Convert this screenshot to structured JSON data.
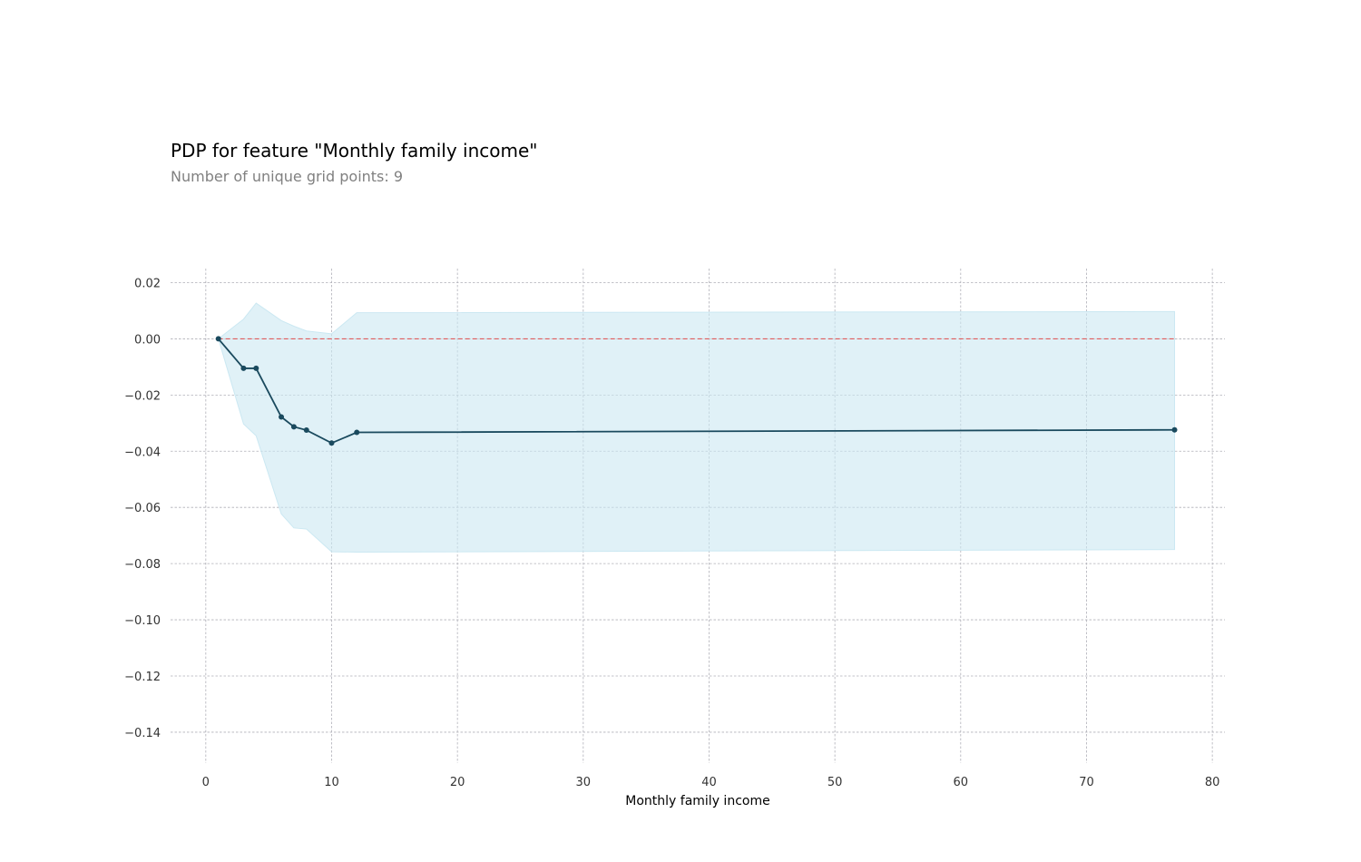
{
  "chart_data": {
    "type": "line",
    "title": "PDP for feature \"Monthly family income\"",
    "subtitle": "Number of unique grid points: 9",
    "xlabel": "Monthly family income",
    "ylabel": "",
    "xlim": [
      -2.8,
      81
    ],
    "ylim": [
      -0.151,
      0.025
    ],
    "xticks": [
      0,
      10,
      20,
      30,
      40,
      50,
      60,
      70,
      80
    ],
    "xtick_labels": [
      "0",
      "10",
      "20",
      "30",
      "40",
      "50",
      "60",
      "70",
      "80"
    ],
    "yticks": [
      0.02,
      0.0,
      -0.02,
      -0.04,
      -0.06,
      -0.08,
      -0.1,
      -0.12,
      -0.14
    ],
    "ytick_labels": [
      "0.02",
      "0.00",
      "−0.02",
      "−0.04",
      "−0.06",
      "−0.08",
      "−0.10",
      "−0.12",
      "−0.14"
    ],
    "grid": true,
    "x": [
      1,
      3,
      4,
      6,
      7,
      8,
      10,
      12,
      77
    ],
    "pdp": [
      0.0,
      -0.0105,
      -0.0105,
      -0.0278,
      -0.0313,
      -0.0325,
      -0.0371,
      -0.0333,
      -0.0324
    ],
    "upper": [
      0.0,
      0.007,
      0.0127,
      0.0065,
      0.0045,
      0.0028,
      0.0018,
      0.0093,
      0.0097
    ],
    "lower": [
      0.0,
      -0.0303,
      -0.0345,
      -0.0623,
      -0.0673,
      -0.0677,
      -0.0758,
      -0.0759,
      -0.075
    ],
    "baseline": 0.0,
    "colors": {
      "line": "#1a4a5e",
      "band": "#cbe8f2",
      "baseline": "#e05c5c",
      "grid": "#b0b0b8"
    }
  }
}
